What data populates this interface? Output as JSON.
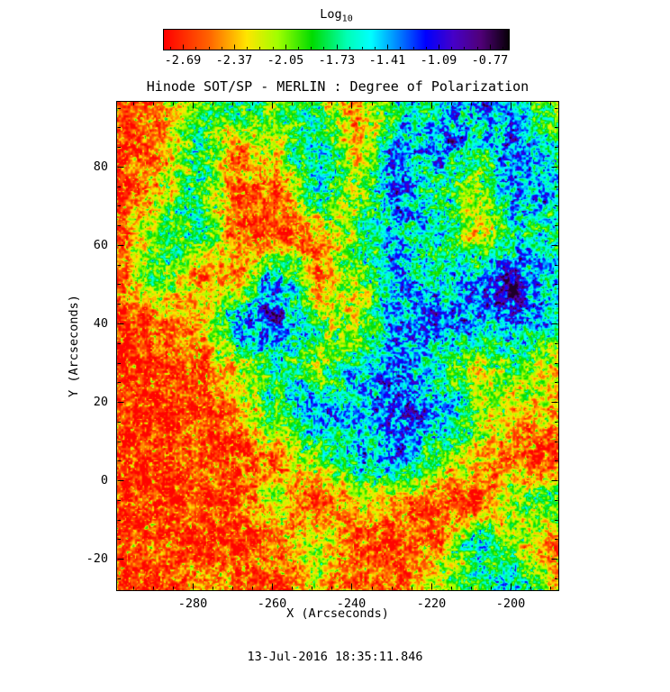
{
  "page": {
    "background": "#ffffff"
  },
  "chart_data": {
    "type": "heatmap",
    "title": "Hinode SOT/SP - MERLIN : Degree of Polarization",
    "xlabel": "X (Arcseconds)",
    "ylabel": "Y (Arcseconds)",
    "timestamp": "13-Jul-2016 18:35:11.846",
    "units": "log10(degree of polarization)",
    "x_range": [
      -299,
      -188
    ],
    "y_range": [
      -28,
      96.5
    ],
    "x_ticks": [
      -280,
      -260,
      -240,
      -220,
      -200
    ],
    "y_ticks": [
      -20,
      0,
      20,
      40,
      60,
      80
    ],
    "minor_tick_step_arcsec": 5,
    "colorbar": {
      "label": "Log",
      "label_sub": "10",
      "ticks": [
        -2.69,
        -2.37,
        -2.05,
        -1.73,
        -1.41,
        -1.09,
        -0.77
      ],
      "range": [
        -2.81,
        -0.65
      ],
      "color_stops": [
        {
          "t": 0.0,
          "c": "#ff0000"
        },
        {
          "t": 0.13,
          "c": "#ff6400"
        },
        {
          "t": 0.24,
          "c": "#ffe600"
        },
        {
          "t": 0.33,
          "c": "#a0ff00"
        },
        {
          "t": 0.43,
          "c": "#00dc00"
        },
        {
          "t": 0.53,
          "c": "#00ffb4"
        },
        {
          "t": 0.6,
          "c": "#00ffff"
        },
        {
          "t": 0.68,
          "c": "#0082ff"
        },
        {
          "t": 0.76,
          "c": "#0000ff"
        },
        {
          "t": 0.84,
          "c": "#4600c8"
        },
        {
          "t": 0.92,
          "c": "#500078"
        },
        {
          "t": 1.0,
          "c": "#0a000a"
        }
      ]
    },
    "grid_note": "coarse 12x12 approximation of the log10 polarization field; rows ordered top (y=96) to bottom (y=-28)",
    "grid_x": [
      -299,
      -289,
      -279,
      -269,
      -259,
      -248,
      -238,
      -228,
      -218,
      -208,
      -198,
      -188
    ],
    "grid_y": [
      96,
      85,
      74,
      62,
      51,
      40,
      29,
      17,
      6,
      -5,
      -17,
      -28
    ],
    "values": [
      [
        -2.7,
        -2.5,
        -1.9,
        -1.7,
        -1.9,
        -2.0,
        -2.5,
        -1.8,
        -1.6,
        -1.3,
        -1.7,
        -2.2
      ],
      [
        -2.7,
        -2.6,
        -1.8,
        -2.4,
        -2.1,
        -1.5,
        -2.4,
        -1.5,
        -1.2,
        -1.7,
        -1.3,
        -1.8
      ],
      [
        -2.7,
        -2.3,
        -1.9,
        -2.6,
        -2.6,
        -1.6,
        -2.3,
        -1.3,
        -1.8,
        -2.2,
        -1.4,
        -1.5
      ],
      [
        -2.6,
        -2.0,
        -1.7,
        -2.6,
        -2.7,
        -2.5,
        -1.9,
        -1.5,
        -1.6,
        -2.4,
        -1.5,
        -1.9
      ],
      [
        -2.7,
        -1.8,
        -2.5,
        -2.4,
        -1.3,
        -2.6,
        -2.0,
        -1.4,
        -1.7,
        -1.3,
        -1.35,
        -1.6
      ],
      [
        -2.7,
        -2.6,
        -2.5,
        -1.5,
        -1.2,
        -1.9,
        -2.4,
        -1.3,
        -1.2,
        -1.6,
        -1.2,
        -1.7
      ],
      [
        -2.7,
        -2.7,
        -2.6,
        -2.2,
        -1.6,
        -2.1,
        -1.5,
        -1.3,
        -1.8,
        -2.3,
        -1.9,
        -2.4
      ],
      [
        -2.7,
        -2.7,
        -2.7,
        -2.5,
        -1.8,
        -1.4,
        -1.6,
        -1.2,
        -1.3,
        -2.0,
        -2.4,
        -2.2
      ],
      [
        -2.7,
        -2.7,
        -2.6,
        -2.7,
        -2.5,
        -2.0,
        -1.5,
        -1.3,
        -1.9,
        -2.4,
        -2.6,
        -2.7
      ],
      [
        -2.7,
        -2.7,
        -2.7,
        -2.6,
        -2.2,
        -2.6,
        -2.3,
        -2.5,
        -2.6,
        -2.7,
        -2.1,
        -1.8
      ],
      [
        -2.7,
        -2.6,
        -2.7,
        -2.7,
        -2.6,
        -2.1,
        -2.6,
        -2.7,
        -2.5,
        -1.6,
        -2.2,
        -2.6
      ],
      [
        -2.7,
        -2.7,
        -2.4,
        -2.6,
        -2.7,
        -2.3,
        -2.6,
        -2.6,
        -2.2,
        -1.9,
        -1.5,
        -2.4
      ]
    ],
    "features": [
      {
        "name": "dark-pore",
        "x": -199.5,
        "y": 48.5,
        "sigma_arcsec": 2.0,
        "amplitude": 0.75,
        "peak_log10_dop": -0.72
      }
    ]
  }
}
